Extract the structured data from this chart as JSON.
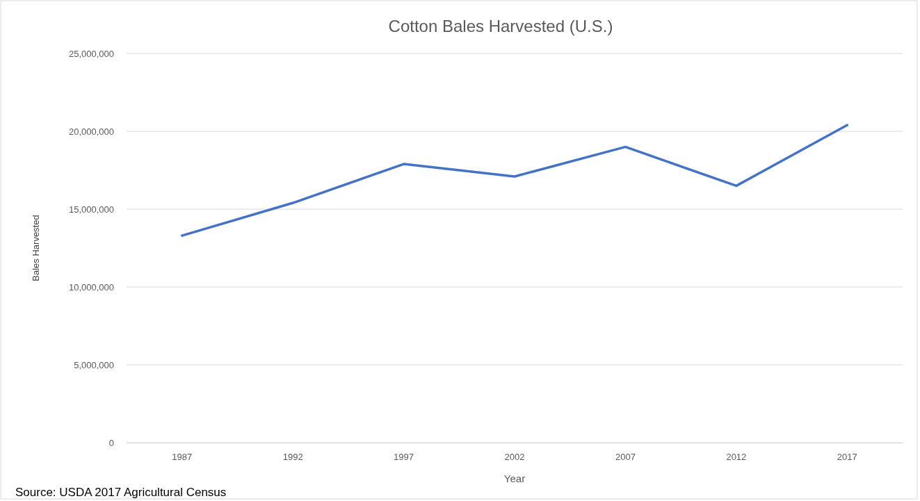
{
  "chart_data": {
    "type": "line",
    "title": "Cotton Bales Harvested (U.S.)",
    "xlabel": "Year",
    "ylabel": "Bales Harvested",
    "categories": [
      "1987",
      "1992",
      "1997",
      "2002",
      "2007",
      "2012",
      "2017"
    ],
    "series": [
      {
        "color": "#4472c4",
        "values": [
          13300000,
          15400000,
          17900000,
          17100000,
          19000000,
          16500000,
          20400000
        ]
      }
    ],
    "ylim": [
      0,
      25000000
    ],
    "yticks": [
      {
        "value": 0,
        "label": "0"
      },
      {
        "value": 5000000,
        "label": "5,000,000"
      },
      {
        "value": 10000000,
        "label": "10,000,000"
      },
      {
        "value": 15000000,
        "label": "15,000,000"
      },
      {
        "value": 20000000,
        "label": "20,000,000"
      },
      {
        "value": 25000000,
        "label": "25,000,000"
      }
    ],
    "grid": "y",
    "marker": "none",
    "line_style": "solid",
    "annotations": [
      "Source: USDA 2017 Agricultural Census"
    ]
  }
}
